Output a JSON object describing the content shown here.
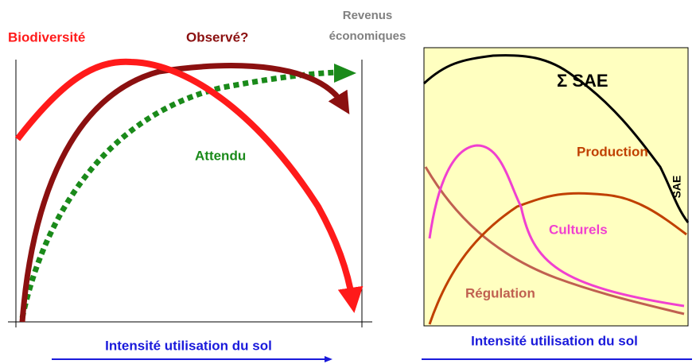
{
  "left_panel": {
    "labels": {
      "biodiversity": "Biodiversité",
      "observed": "Observé?",
      "revenue_line1": "Revenus",
      "revenue_line2": "économiques",
      "expected": "Attendu"
    },
    "x_axis_label": "Intensité utilisation du sol"
  },
  "right_panel": {
    "labels": {
      "sum": "Σ SAE",
      "production": "Production",
      "cultural": "Culturels",
      "regulation": "Régulation",
      "sae": "SAE"
    },
    "x_axis_label": "Intensité utilisation du sol"
  }
}
